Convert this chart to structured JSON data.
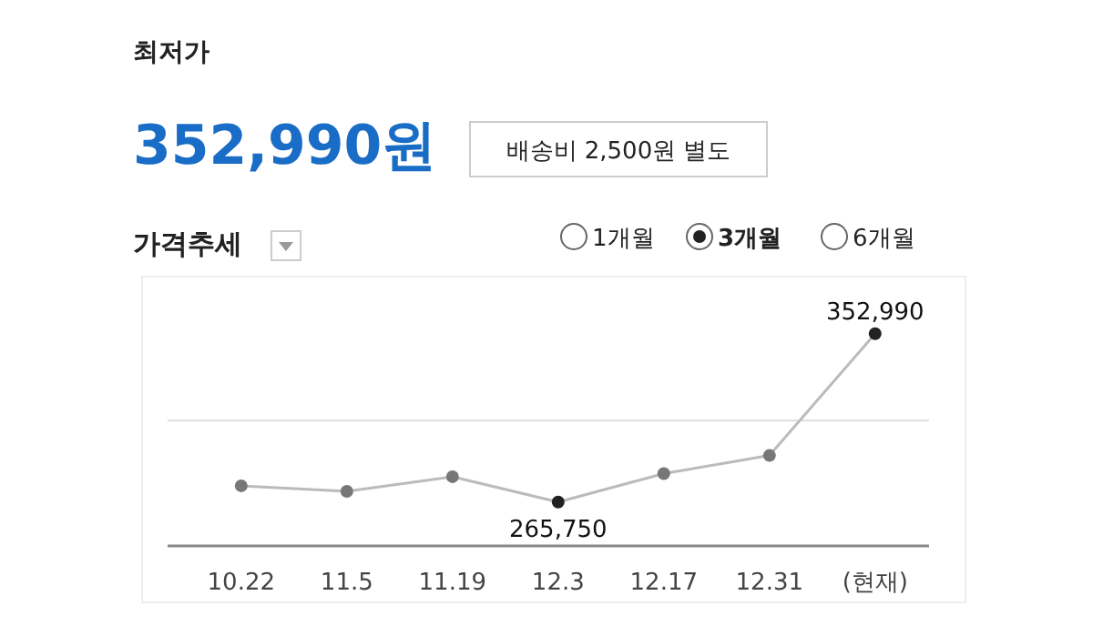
{
  "chart_data": {
    "type": "line",
    "title": "가격추세",
    "annotations": [
      "최저가",
      "352,990원",
      "배송비 2,500원 별도",
      "1개월",
      "3개월",
      "6개월"
    ],
    "categories": [
      "10.22",
      "11.5",
      "11.19",
      "12.3",
      "12.17",
      "12.31",
      "(현재)"
    ],
    "series": [
      {
        "color": "#bbbbbb",
        "values": [
          274200,
          271300,
          278900,
          265750,
          280500,
          289900,
          352990
        ],
        "value_labels": [
          null,
          null,
          null,
          "265,750",
          null,
          null,
          "352,990"
        ]
      }
    ],
    "ref_lines": [
      {
        "axis": "y",
        "value": 308000,
        "color": "#dddddd"
      }
    ],
    "marker": "circle"
  }
}
